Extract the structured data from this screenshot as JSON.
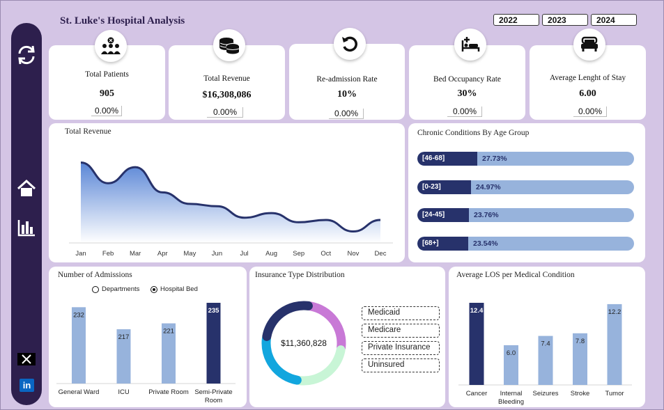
{
  "header": {
    "title": "St. Luke's Hospital Analysis",
    "years": [
      "2022",
      "2023",
      "2024"
    ]
  },
  "sidebar": {
    "icons": [
      "refresh-icon",
      "home-icon",
      "bar-chart-icon",
      "x-logo-icon",
      "linkedin-icon"
    ]
  },
  "kpis": [
    {
      "label": "Total Patients",
      "value": "905",
      "change": "0.00%",
      "icon": "patients-icon"
    },
    {
      "label": "Total Revenue",
      "value": "$16,308,086",
      "change": "0.00%",
      "icon": "coins-icon"
    },
    {
      "label": "Re-admission Rate",
      "value": "10%",
      "change": "0.00%",
      "icon": "readmission-icon"
    },
    {
      "label": "Bed Occupancy Rate",
      "value": "30%",
      "change": "0.00%",
      "icon": "bed-plus-icon"
    },
    {
      "label": "Average Lenght of Stay",
      "value": "6.00",
      "change": "0.00%",
      "icon": "bed-icon"
    }
  ],
  "revenue_panel": {
    "title": "Total Revenue",
    "months": [
      "Jan",
      "Feb",
      "Mar",
      "Apr",
      "May",
      "Jun",
      "Jul",
      "Aug",
      "Sep",
      "Oct",
      "Nov",
      "Dec"
    ],
    "relative_values": [
      1.55,
      1.46,
      1.53,
      1.42,
      1.37,
      1.36,
      1.31,
      1.33,
      1.29,
      1.3,
      1.25,
      1.3
    ]
  },
  "chronic_panel": {
    "title": "Chronic Conditions By Age Group",
    "groups": [
      {
        "label": "[46-68]",
        "value": "27.73%",
        "fraction": 0.2773
      },
      {
        "label": "[0-23]",
        "value": "24.97%",
        "fraction": 0.2497
      },
      {
        "label": "[24-45]",
        "value": "23.76%",
        "fraction": 0.2376
      },
      {
        "label": "[68+]",
        "value": "23.54%",
        "fraction": 0.2354
      }
    ]
  },
  "admissions_panel": {
    "title": "Number of Admissions",
    "options": [
      "Departments",
      "Hospital Bed"
    ],
    "selected": "Hospital Bed",
    "bars": [
      {
        "label": "General Ward",
        "value": "232",
        "n": 232
      },
      {
        "label": "ICU",
        "value": "217",
        "n": 217
      },
      {
        "label": "Private Room",
        "value": "221",
        "n": 221
      },
      {
        "label": "Semi-Private Room",
        "value": "235",
        "n": 235
      }
    ],
    "colors": {
      "normal": "#97b3dc",
      "highlight": "#27326b"
    }
  },
  "insurance_panel": {
    "title": "Insurance Type Distribution",
    "total": "$11,360,828",
    "legend": [
      "Medicaid",
      "Medicare",
      "Private Insurance",
      "Uninsured"
    ],
    "segment_colors": [
      "#c879d6",
      "#c8f5d6",
      "#12a6de",
      "#27326b"
    ],
    "segment_fractions": [
      0.25,
      0.25,
      0.25,
      0.25
    ]
  },
  "los_panel": {
    "title": "Average LOS per Medical Condition",
    "bars": [
      {
        "label": "Cancer",
        "value": "12.4",
        "n": 12.4
      },
      {
        "label": "Internal Bleeding",
        "value": "6.0",
        "n": 6.0
      },
      {
        "label": "Seizures",
        "value": "7.4",
        "n": 7.4
      },
      {
        "label": "Stroke",
        "value": "7.8",
        "n": 7.8
      },
      {
        "label": "Tumor",
        "value": "12.2",
        "n": 12.2
      }
    ],
    "colors": {
      "normal": "#97b3dc",
      "highlight": "#27326b"
    }
  }
}
